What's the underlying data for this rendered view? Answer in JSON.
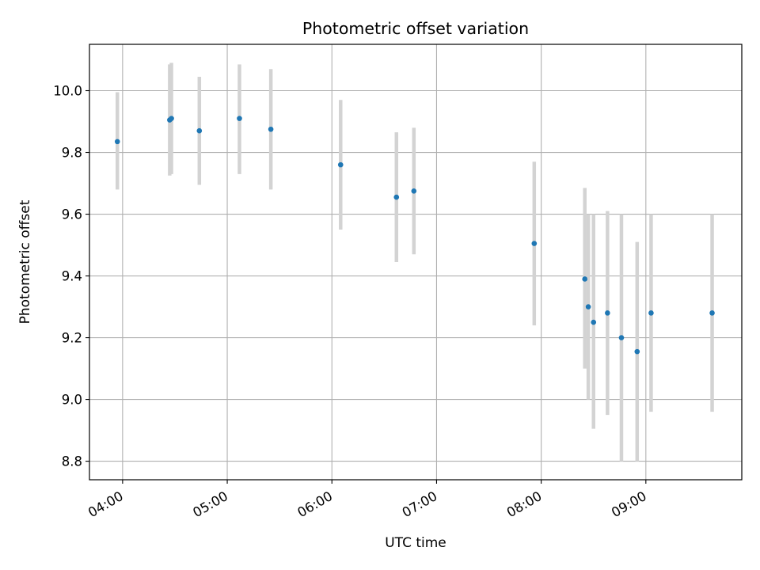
{
  "chart_data": {
    "type": "scatter",
    "title": "Photometric offset variation",
    "xlabel": "UTC time",
    "ylabel": "Photometric offset",
    "xlim": [
      "03:41",
      "09:55"
    ],
    "ylim": [
      8.74,
      10.15
    ],
    "xticks": [
      "04:00",
      "05:00",
      "06:00",
      "07:00",
      "08:00",
      "09:00"
    ],
    "yticks": [
      "8.8",
      "9.0",
      "9.2",
      "9.4",
      "9.6",
      "9.8",
      "10.0"
    ],
    "grid": true,
    "marker_color": "#1f77b4",
    "errorbar_color": "#d3d3d3",
    "points": [
      {
        "x": "03:57",
        "y": 9.835,
        "ylow": 9.68,
        "yhigh": 9.995
      },
      {
        "x": "04:27",
        "y": 9.905,
        "ylow": 9.725,
        "yhigh": 10.085
      },
      {
        "x": "04:28",
        "y": 9.91,
        "ylow": 9.73,
        "yhigh": 10.09
      },
      {
        "x": "04:44",
        "y": 9.87,
        "ylow": 9.695,
        "yhigh": 10.045
      },
      {
        "x": "05:07",
        "y": 9.91,
        "ylow": 9.73,
        "yhigh": 10.085
      },
      {
        "x": "05:25",
        "y": 9.875,
        "ylow": 9.68,
        "yhigh": 10.07
      },
      {
        "x": "06:05",
        "y": 9.76,
        "ylow": 9.55,
        "yhigh": 9.97
      },
      {
        "x": "06:37",
        "y": 9.655,
        "ylow": 9.445,
        "yhigh": 9.865
      },
      {
        "x": "06:47",
        "y": 9.675,
        "ylow": 9.47,
        "yhigh": 9.88
      },
      {
        "x": "07:56",
        "y": 9.505,
        "ylow": 9.24,
        "yhigh": 9.77
      },
      {
        "x": "08:25",
        "y": 9.39,
        "ylow": 9.1,
        "yhigh": 9.685
      },
      {
        "x": "08:27",
        "y": 9.3,
        "ylow": 9.0,
        "yhigh": 9.6
      },
      {
        "x": "08:30",
        "y": 9.25,
        "ylow": 8.905,
        "yhigh": 9.6
      },
      {
        "x": "08:38",
        "y": 9.28,
        "ylow": 8.95,
        "yhigh": 9.61
      },
      {
        "x": "08:46",
        "y": 9.2,
        "ylow": 8.8,
        "yhigh": 9.6
      },
      {
        "x": "08:55",
        "y": 9.155,
        "ylow": 8.8,
        "yhigh": 9.51
      },
      {
        "x": "09:03",
        "y": 9.28,
        "ylow": 8.96,
        "yhigh": 9.6
      },
      {
        "x": "09:38",
        "y": 9.28,
        "ylow": 8.96,
        "yhigh": 9.6
      }
    ]
  }
}
